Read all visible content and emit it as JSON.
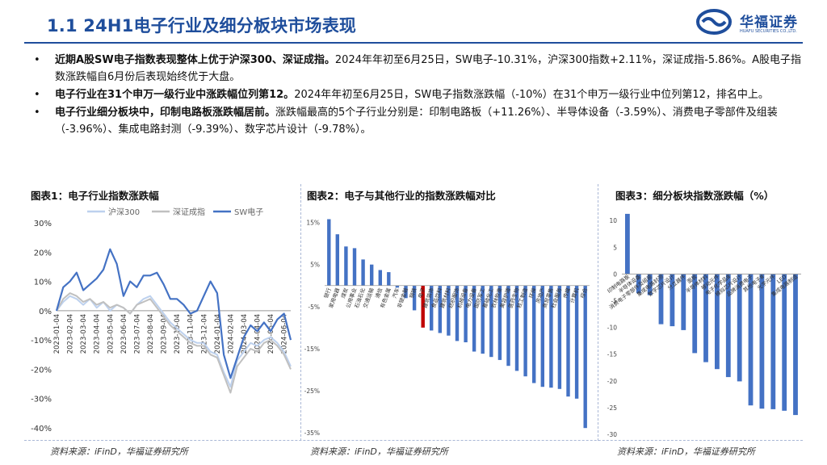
{
  "header": {
    "title": "1.1 24H1电子行业及细分板块市场表现",
    "logo_name": "华福证券",
    "logo_sub": "HUAFU SECURITIES CO.,LTD."
  },
  "bullets": [
    {
      "bold": "近期A股SW电子指数表现整体上优于沪深300、深证成指。",
      "text": "2024年年初至6月25日，SW电子-10.31%，沪深300指数+2.11%，深证成指-5.86%。A股电子指数涨跌幅自6月份后表现始终优于大盘。"
    },
    {
      "bold": "电子行业在31个申万一级行业中涨跌幅位列第12。",
      "text": "2024年年初至6月25日，SW电子指数涨跌幅（-10%）在31个申万一级行业中位列第12，排名中上。"
    },
    {
      "bold": "电子行业细分板块中，印制电路板涨跌幅居前。",
      "text": "涨跌幅最高的5个子行业分别是：印制电路板（+11.26%）、半导体设备（-3.59%）、消费电子零部件及组装（-3.96%）、集成电路封测（-9.39%）、数字芯片设计（-9.78%）。"
    }
  ],
  "chart1": {
    "title": "图表1：电子行业指数涨跌幅",
    "source": "资料来源：iFinD，华福证券研究所"
  },
  "chart2": {
    "title": "图表2：电子与其他行业的指数涨跌幅对比",
    "source": "资料来源：iFinD，华福证券研究所"
  },
  "chart3": {
    "title": "图表3：细分板块指数涨跌幅（%）",
    "source": "资料来源：iFinD，华福证券研究所"
  },
  "colors": {
    "primary": "#1f4e9c",
    "series_sw": "#4472c4",
    "series_hs": "#bdd1ee",
    "series_sz": "#c0c0c0",
    "highlight": "#c00000"
  },
  "chart_data": [
    {
      "type": "line",
      "title": "图表1：电子行业指数涨跌幅",
      "ylim": [
        -40,
        30
      ],
      "ytick_labels": [
        "30%",
        "20%",
        "10%",
        "0%",
        "-10%",
        "-20%",
        "-30%",
        "-40%"
      ],
      "yticks": [
        30,
        20,
        10,
        0,
        -10,
        -20,
        -30,
        -40
      ],
      "xtick_labels": [
        "2023-01-04",
        "2023-02-04",
        "2023-03-04",
        "2023-04-04",
        "2023-05-04",
        "2023-06-04",
        "2023-07-04",
        "2023-08-04",
        "2023-09-04",
        "2023-10-04",
        "2023-11-04",
        "2023-12-04",
        "2024-01-04",
        "2024-02-04",
        "2024-03-04",
        "2024-04-04",
        "2024-05-04",
        "2024-06-04"
      ],
      "x": [
        0,
        0.5,
        1,
        1.5,
        2,
        2.5,
        3,
        3.5,
        4,
        4.5,
        5,
        5.5,
        6,
        6.5,
        7,
        7.5,
        8,
        8.5,
        9,
        9.5,
        10,
        10.5,
        11,
        11.5,
        12,
        12.5,
        13,
        13.5,
        14,
        14.5,
        15,
        15.5,
        16,
        16.5,
        17,
        17.5
      ],
      "series": [
        {
          "name": "沪深300",
          "values": [
            0,
            3,
            5,
            4,
            2,
            4,
            1,
            3,
            0,
            2,
            1,
            -1,
            2,
            4,
            5,
            2,
            -1,
            -4,
            -6,
            -8,
            -10,
            -11,
            -11,
            -14,
            -15,
            -21,
            -26,
            -17,
            -14,
            -11,
            -12,
            -10,
            -9,
            -11,
            -14,
            -19
          ]
        },
        {
          "name": "深证成指",
          "values": [
            0,
            4,
            6,
            5,
            3,
            4,
            2,
            3,
            1,
            2,
            1,
            -1,
            2,
            3,
            4,
            1,
            -2,
            -5,
            -7,
            -9,
            -11,
            -12,
            -12,
            -15,
            -16,
            -22,
            -28,
            -19,
            -16,
            -13,
            -14,
            -11,
            -10,
            -12,
            -15,
            -20
          ]
        },
        {
          "name": "SW电子",
          "values": [
            0,
            8,
            10,
            13,
            7,
            9,
            11,
            14,
            21,
            16,
            5,
            10,
            8,
            12,
            12,
            13,
            9,
            4,
            4,
            2,
            -1,
            0,
            5,
            10,
            6,
            -15,
            -23,
            -16,
            -9,
            -5,
            -7,
            -4,
            -7,
            -3,
            -1,
            -10
          ]
        }
      ]
    },
    {
      "type": "bar",
      "title": "图表2：电子与其他行业的指数涨跌幅对比",
      "ylim": [
        -35,
        18
      ],
      "yticks": [
        15,
        5,
        -5,
        -15,
        -25,
        -35
      ],
      "ytick_labels": [
        "15%",
        "5%",
        "-5%",
        "-15%",
        "-25%",
        "-35%"
      ],
      "categories": [
        "银行",
        "家用电器",
        "煤炭",
        "公用事业",
        "石油石化",
        "交通运输",
        "通信",
        "有色金属",
        "汽车",
        "非银金融",
        "钢铁",
        "电子",
        "建筑装饰",
        "食品饮料",
        "建筑材料",
        "纺织服饰",
        "机械设备",
        "电力设备",
        "国防军工",
        "基础化工",
        "农林牧渔",
        "美容护理",
        "医药生物",
        "轻工制造",
        "环保",
        "房地产",
        "商贸零售",
        "社会服务",
        "传媒",
        "计算机",
        "综合"
      ],
      "values": [
        15.8,
        12.2,
        9.3,
        8.9,
        6.2,
        5.0,
        3.7,
        3.2,
        -0.5,
        -3.0,
        -5.9,
        -10.0,
        -10.7,
        -11.3,
        -11.9,
        -13.2,
        -13.5,
        -15.7,
        -16.2,
        -17.0,
        -17.7,
        -19.1,
        -20.3,
        -21.6,
        -23.2,
        -24.1,
        -24.3,
        -24.6,
        -26.4,
        -26.9,
        -33.9
      ],
      "highlight": "电子"
    },
    {
      "type": "bar",
      "title": "图表3：细分板块指数涨跌幅（%）",
      "ylim": [
        -30,
        12
      ],
      "yticks": [
        10,
        5,
        0,
        -5,
        -10,
        -15,
        -20,
        -25,
        -30
      ],
      "ytick_labels": [
        "10",
        "5",
        "0",
        "-5",
        "-10",
        "-15",
        "-20",
        "-25",
        "-30"
      ],
      "categories": [
        "印制电路板",
        "半导体设备",
        "消费电子零部件及组装",
        "集成电路封测",
        "数字芯片设计",
        "分立器件",
        "面板",
        "半导体材料",
        "被动元件",
        "电子化学品Ⅲ",
        "模拟芯片设计",
        "品牌消费电子",
        "其他电子Ⅲ",
        "光学元件",
        "LED",
        "集成电路制造"
      ],
      "values": [
        11.26,
        -3.59,
        -3.96,
        -9.39,
        -9.78,
        -10.5,
        -14.8,
        -16.5,
        -17.8,
        -19.3,
        -20.1,
        -24.6,
        -25.2,
        -25.3,
        -25.6,
        -26.4
      ]
    }
  ]
}
